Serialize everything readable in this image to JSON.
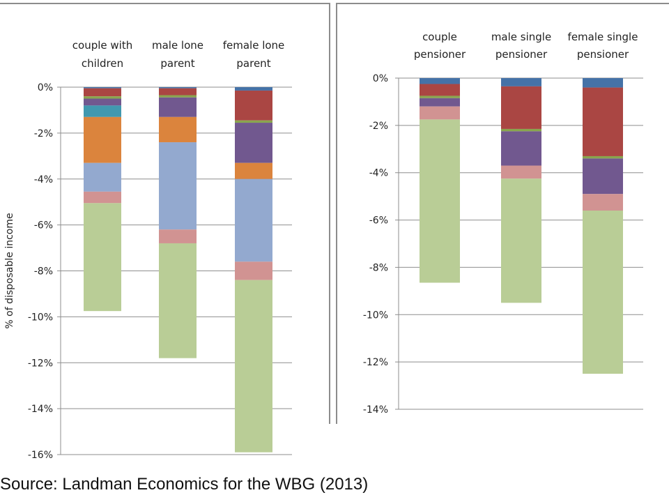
{
  "source_text": "Source: Landman Economics for the WBG (2013)",
  "colors": {
    "blue": "#4572a7",
    "red": "#aa4643",
    "olive": "#89a54e",
    "purple": "#71588f",
    "teal": "#4198af",
    "orange": "#db843d",
    "lightblue": "#93a9cf",
    "pink": "#d19392",
    "green": "#b9cd96"
  },
  "chart_data": [
    {
      "type": "bar",
      "stacked": true,
      "title": "",
      "ylabel": "% of disposable income",
      "xlabel": "",
      "ylim": [
        -16,
        0
      ],
      "yticks": [
        "0%",
        "-2%",
        "-4%",
        "-6%",
        "-8%",
        "-10%",
        "-12%",
        "-14%",
        "-16%"
      ],
      "ytick_values": [
        0,
        -2,
        -4,
        -6,
        -8,
        -10,
        -12,
        -14,
        -16
      ],
      "grid": true,
      "categories": [
        [
          "couple with",
          "children"
        ],
        [
          "male lone",
          "parent"
        ],
        [
          "female lone",
          "parent"
        ]
      ],
      "segments": [
        [
          {
            "color": "blue",
            "value": -0.05
          },
          {
            "color": "red",
            "value": -0.35
          },
          {
            "color": "olive",
            "value": -0.1
          },
          {
            "color": "purple",
            "value": -0.3
          },
          {
            "color": "teal",
            "value": -0.5
          },
          {
            "color": "orange",
            "value": -2.0
          },
          {
            "color": "lightblue",
            "value": -1.25
          },
          {
            "color": "pink",
            "value": -0.5
          },
          {
            "color": "green",
            "value": -4.7
          }
        ],
        [
          {
            "color": "blue",
            "value": -0.05
          },
          {
            "color": "red",
            "value": -0.3
          },
          {
            "color": "olive",
            "value": -0.1
          },
          {
            "color": "purple",
            "value": -0.85
          },
          {
            "color": "orange",
            "value": -1.1
          },
          {
            "color": "lightblue",
            "value": -3.8
          },
          {
            "color": "pink",
            "value": -0.6
          },
          {
            "color": "green",
            "value": -5.0
          }
        ],
        [
          {
            "color": "blue",
            "value": -0.15
          },
          {
            "color": "red",
            "value": -1.3
          },
          {
            "color": "olive",
            "value": -0.1
          },
          {
            "color": "purple",
            "value": -1.75
          },
          {
            "color": "orange",
            "value": -0.7
          },
          {
            "color": "lightblue",
            "value": -3.6
          },
          {
            "color": "pink",
            "value": -0.8
          },
          {
            "color": "green",
            "value": -7.5
          }
        ]
      ]
    },
    {
      "type": "bar",
      "stacked": true,
      "title": "",
      "xlabel": "",
      "ylabel": "",
      "ylim": [
        -14,
        0
      ],
      "yticks": [
        "0%",
        "-2%",
        "-4%",
        "-6%",
        "-8%",
        "-10%",
        "-12%",
        "-14%"
      ],
      "ytick_values": [
        0,
        -2,
        -4,
        -6,
        -8,
        -10,
        -12,
        -14
      ],
      "grid": true,
      "categories": [
        [
          "couple",
          "pensioner"
        ],
        [
          "male single",
          "pensioner"
        ],
        [
          "female single",
          "pensioner"
        ]
      ],
      "segments": [
        [
          {
            "color": "blue",
            "value": -0.25
          },
          {
            "color": "red",
            "value": -0.5
          },
          {
            "color": "olive",
            "value": -0.1
          },
          {
            "color": "purple",
            "value": -0.35
          },
          {
            "color": "pink",
            "value": -0.55
          },
          {
            "color": "green",
            "value": -6.9
          }
        ],
        [
          {
            "color": "blue",
            "value": -0.35
          },
          {
            "color": "red",
            "value": -1.8
          },
          {
            "color": "olive",
            "value": -0.1
          },
          {
            "color": "purple",
            "value": -1.45
          },
          {
            "color": "pink",
            "value": -0.55
          },
          {
            "color": "green",
            "value": -5.25
          }
        ],
        [
          {
            "color": "blue",
            "value": -0.4
          },
          {
            "color": "red",
            "value": -2.9
          },
          {
            "color": "olive",
            "value": -0.1
          },
          {
            "color": "purple",
            "value": -1.5
          },
          {
            "color": "pink",
            "value": -0.7
          },
          {
            "color": "green",
            "value": -6.9
          }
        ]
      ]
    }
  ]
}
